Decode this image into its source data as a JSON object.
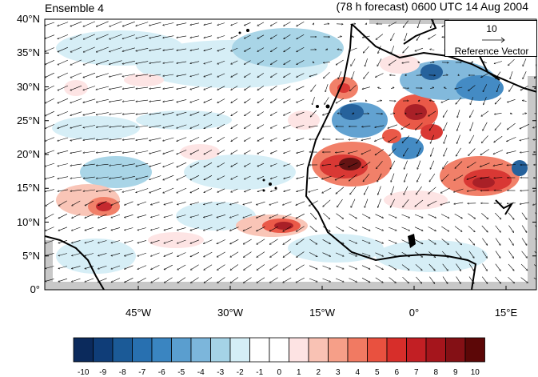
{
  "header": {
    "title_left": "Ensemble 4",
    "title_right": "(78 h forecast) 0600 UTC 14 Aug 2004"
  },
  "axes": {
    "lat_labels": [
      "40°N",
      "35°N",
      "30°N",
      "25°N",
      "20°N",
      "15°N",
      "10°N",
      "5°N",
      "0°"
    ],
    "lon_labels": [
      "45°W",
      "30°W",
      "15°W",
      "0°",
      "15°E"
    ]
  },
  "reference_vector": {
    "value": "10",
    "label": "Reference Vector"
  },
  "colorbar": {
    "labels": [
      "-10",
      "-9",
      "-8",
      "-7",
      "-6",
      "-5",
      "-4",
      "-3",
      "-2",
      "-1",
      "0",
      "1",
      "2",
      "3",
      "4",
      "5",
      "6",
      "7",
      "8",
      "9",
      "10"
    ],
    "colors": [
      "#0b2a5c",
      "#0f3d78",
      "#1b5a97",
      "#2870b0",
      "#3a85c1",
      "#5a9ecf",
      "#7cb6db",
      "#a5d3e6",
      "#d4eef6",
      "#ffffff",
      "#ffffff",
      "#fde3e3",
      "#f9c2b4",
      "#f69f88",
      "#f17a62",
      "#e9513f",
      "#d72e2a",
      "#c21f24",
      "#a5151c",
      "#841015",
      "#5c0707"
    ]
  },
  "colors": {
    "land_boundary": "#000000",
    "missing_gray": "#c8c8c8"
  }
}
